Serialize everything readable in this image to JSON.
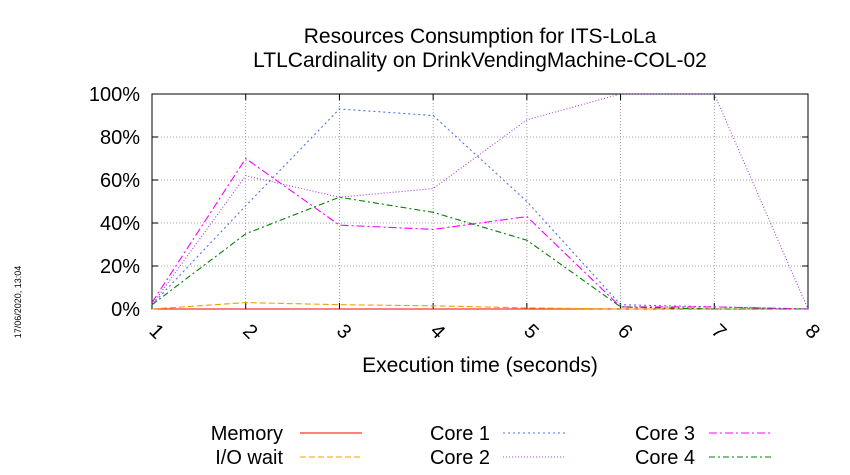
{
  "chart_data": {
    "type": "line",
    "title": [
      "Resources Consumption for ITS-LoLa",
      "LTLCardinality on DrinkVendingMachine-COL-02"
    ],
    "xlabel": "Execution time (seconds)",
    "ylabel": "",
    "x": [
      1,
      2,
      3,
      4,
      5,
      6,
      7,
      8
    ],
    "x_tick_labels": [
      "1",
      "2",
      "3",
      "4",
      "5",
      "6",
      "7",
      "8"
    ],
    "xlim": [
      1,
      8
    ],
    "ylim": [
      0,
      100
    ],
    "y_ticks": [
      0,
      20,
      40,
      60,
      80,
      100
    ],
    "y_tick_labels": [
      "0%",
      "20%",
      "40%",
      "60%",
      "80%",
      "100%"
    ],
    "grid": true,
    "legend_placement": "bottom",
    "series": [
      {
        "name": "Memory",
        "color": "#ff0000",
        "dash": "",
        "values": [
          0,
          0,
          0,
          0,
          0,
          0,
          0,
          0
        ]
      },
      {
        "name": "I/O wait",
        "color": "#f0a000",
        "dash": "6,3",
        "values": [
          0,
          3,
          2,
          1.5,
          0.5,
          0,
          0,
          0
        ]
      },
      {
        "name": "Core 1",
        "color": "#5070e0",
        "dash": "2,3",
        "values": [
          2,
          48,
          93,
          90,
          50,
          2,
          1,
          0
        ]
      },
      {
        "name": "Core 2",
        "color": "#a040e0",
        "dash": "1,2",
        "values": [
          2,
          62,
          52,
          56,
          88,
          100,
          100,
          0
        ]
      },
      {
        "name": "Core 3",
        "color": "#ff00ff",
        "dash": "8,3,2,3",
        "values": [
          3,
          70,
          39,
          37,
          43,
          1,
          1,
          0
        ]
      },
      {
        "name": "Core 4",
        "color": "#008000",
        "dash": "6,3,2,3",
        "values": [
          2,
          35,
          52,
          45,
          32,
          1,
          0,
          0
        ]
      }
    ]
  },
  "timestamp": "17/06/2020, 13:04"
}
